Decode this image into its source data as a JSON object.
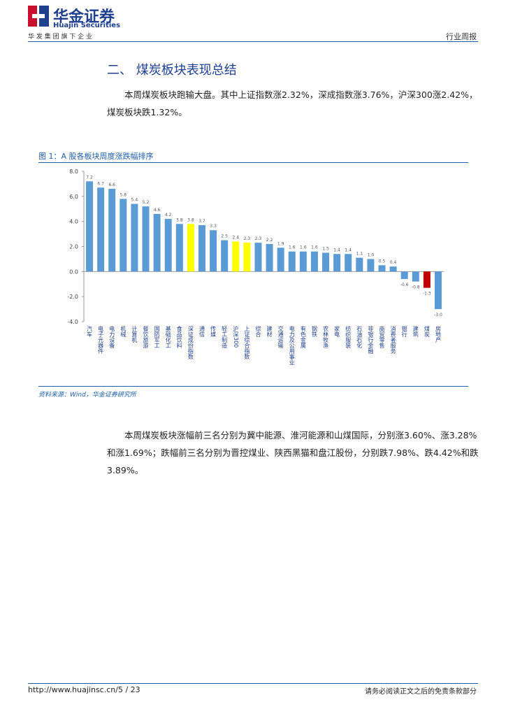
{
  "header": {
    "brand": "华金证券",
    "brand_en": "Huajin Securities",
    "slogan": "华 发 集 团 旗 下 企 业",
    "report_type": "行业周报"
  },
  "section_title": "二、 煤炭板块表现总结",
  "paragraphs": [
    "本周煤炭板块跑输大盘。其中上证指数涨2.32%，深成指数涨3.76%，沪深300涨2.42%，煤炭板块跌1.32%。",
    "本周煤炭板块涨幅前三名分别为冀中能源、淮河能源和山煤国际，分别涨3.60%、涨3.28%和涨1.69%；跌幅前三名分别为晋控煤业、陕西黑猫和盘江股份，分别跌7.98%、跌4.42%和跌3.89%。"
  ],
  "figure_caption": "图 1：A 股各板块周度涨跌幅排序",
  "chart_data": {
    "type": "bar",
    "categories": [
      "汽车",
      "电子元器件",
      "电力设备",
      "机械",
      "计算机",
      "餐饮旅游",
      "国防军工",
      "基础化工",
      "食品饮料",
      "深证成份指数",
      "通信",
      "传媒",
      "轻工制造",
      "沪深300",
      "上证综合指数",
      "综合",
      "建材",
      "交通运输",
      "电力及公用事业",
      "有色金属",
      "钢铁",
      "农林牧渔",
      "家电",
      "纺织服装",
      "石油石化",
      "非银行金融",
      "商贸零售",
      "消费者服务",
      "银行",
      "建筑",
      "煤炭",
      "房地产"
    ],
    "values": [
      7.2,
      6.7,
      6.6,
      5.8,
      5.4,
      5.2,
      4.6,
      4.2,
      3.8,
      3.8,
      3.7,
      3.3,
      2.5,
      2.4,
      2.3,
      2.3,
      2.2,
      1.9,
      1.6,
      1.6,
      1.6,
      1.5,
      1.4,
      1.4,
      1.1,
      1.0,
      0.5,
      0.4,
      -0.6,
      -0.8,
      -1.3,
      -3.0
    ],
    "value_labels": [
      "7.2",
      "6.7",
      "6.6",
      "5.8",
      "5.4",
      "5.2",
      "4.6",
      "4.2",
      "3.8",
      "3.8",
      "3.7",
      "3.3",
      "2.5",
      "2.4",
      "2.3",
      "2.3",
      "2.2",
      "1.9",
      "1.6",
      "1.6",
      "1.6",
      "1.5",
      "1.4",
      "1.4",
      "1.1",
      "1.0",
      "0.5",
      "0.4",
      "-0.6",
      "-0.8",
      "-1.3",
      "-3.0"
    ],
    "colors": [
      "#5b9bd5",
      "#5b9bd5",
      "#5b9bd5",
      "#5b9bd5",
      "#5b9bd5",
      "#5b9bd5",
      "#5b9bd5",
      "#5b9bd5",
      "#5b9bd5",
      "#ffff00",
      "#5b9bd5",
      "#5b9bd5",
      "#5b9bd5",
      "#ffff00",
      "#ffff00",
      "#5b9bd5",
      "#5b9bd5",
      "#5b9bd5",
      "#5b9bd5",
      "#5b9bd5",
      "#5b9bd5",
      "#5b9bd5",
      "#5b9bd5",
      "#5b9bd5",
      "#5b9bd5",
      "#5b9bd5",
      "#5b9bd5",
      "#5b9bd5",
      "#5b9bd5",
      "#5b9bd5",
      "#c00000",
      "#5b9bd5"
    ],
    "ylim": [
      -4,
      8
    ],
    "yticks": [
      {
        "value": 8,
        "label": "8.0"
      },
      {
        "value": 6,
        "label": "6.0"
      },
      {
        "value": 4,
        "label": "4.0"
      },
      {
        "value": 2,
        "label": "2.0"
      },
      {
        "value": 0,
        "label": "0.0"
      },
      {
        "value": -2,
        "label": "-2.0"
      },
      {
        "value": -4,
        "label": "-4.0"
      }
    ]
  },
  "source": "资料来源：Wind，华金证券研究所",
  "footer": {
    "url": "http://www.huajinsc.cn/5 / 23",
    "disclaimer": "请务必阅读正文之后的免责条款部分"
  }
}
